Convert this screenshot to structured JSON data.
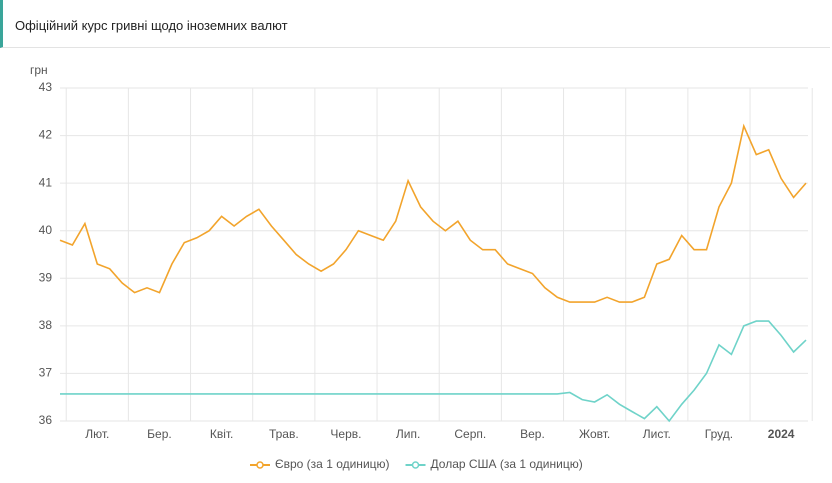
{
  "chart_data": {
    "type": "line",
    "title": "Офіційний курс гривні щодо іноземних валют",
    "y_label": "грн",
    "categories": [
      null,
      null,
      null,
      "Лют.",
      null,
      null,
      null,
      null,
      "Бер.",
      null,
      null,
      null,
      null,
      "Квіт.",
      null,
      null,
      null,
      null,
      "Трав.",
      null,
      null,
      null,
      null,
      "Черв.",
      null,
      null,
      null,
      null,
      "Лип.",
      null,
      null,
      null,
      null,
      "Серп.",
      null,
      null,
      null,
      null,
      "Вер.",
      null,
      null,
      null,
      null,
      "Жовт.",
      null,
      null,
      null,
      null,
      "Лист.",
      null,
      null,
      null,
      null,
      "Груд.",
      null,
      null,
      null,
      null,
      "2024",
      null,
      null
    ],
    "series": [
      {
        "name": "Євро (за 1 одиницю)",
        "color": "#f2a42c",
        "values": [
          39.8,
          39.7,
          40.15,
          39.3,
          39.2,
          38.9,
          38.7,
          38.8,
          38.7,
          39.3,
          39.75,
          39.85,
          40.0,
          40.3,
          40.1,
          40.3,
          40.45,
          40.1,
          39.8,
          39.5,
          39.3,
          39.15,
          39.3,
          39.6,
          40.0,
          39.9,
          39.8,
          40.2,
          41.05,
          40.5,
          40.2,
          40.0,
          40.2,
          39.8,
          39.6,
          39.6,
          39.3,
          39.2,
          39.1,
          38.8,
          38.6,
          38.5,
          38.5,
          38.5,
          38.6,
          38.5,
          38.5,
          38.6,
          39.3,
          39.4,
          39.9,
          39.6,
          39.6,
          40.5,
          41.0,
          42.2,
          41.6,
          41.7,
          41.1,
          40.7,
          41.0
        ]
      },
      {
        "name": "Долар США (за 1 одиницю)",
        "color": "#6fd3c9",
        "values": [
          36.57,
          36.57,
          36.57,
          36.57,
          36.57,
          36.57,
          36.57,
          36.57,
          36.57,
          36.57,
          36.57,
          36.57,
          36.57,
          36.57,
          36.57,
          36.57,
          36.57,
          36.57,
          36.57,
          36.57,
          36.57,
          36.57,
          36.57,
          36.57,
          36.57,
          36.57,
          36.57,
          36.57,
          36.57,
          36.57,
          36.57,
          36.57,
          36.57,
          36.57,
          36.57,
          36.57,
          36.57,
          36.57,
          36.57,
          36.57,
          36.57,
          36.6,
          36.45,
          36.4,
          36.55,
          36.35,
          36.2,
          36.05,
          36.3,
          36.0,
          36.35,
          36.65,
          37.0,
          37.6,
          37.4,
          38.0,
          38.1,
          38.1,
          37.8,
          37.45,
          37.7
        ]
      }
    ],
    "ylim": [
      36,
      43
    ],
    "yticks": [
      36,
      37,
      38,
      39,
      40,
      41,
      42,
      43
    ],
    "grid": true
  }
}
